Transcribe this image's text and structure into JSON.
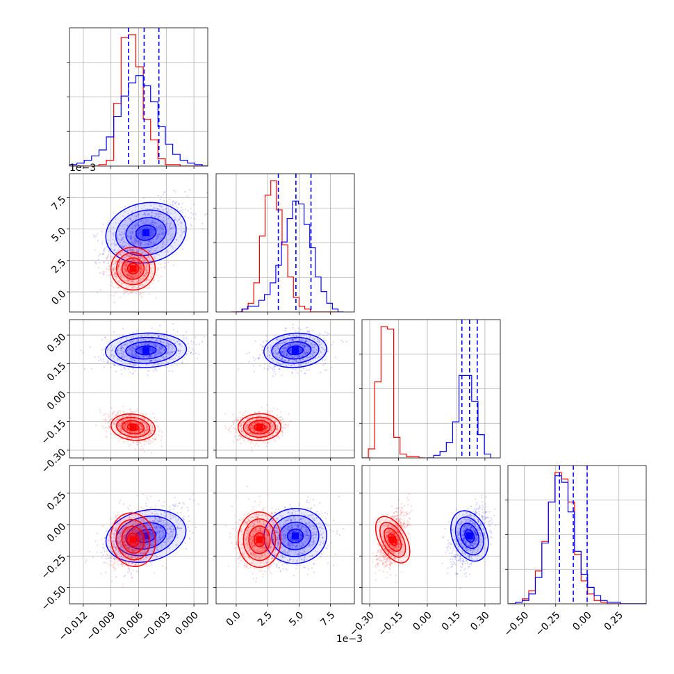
{
  "chart_data": {
    "type": "corner",
    "colors": {
      "series_a": "#0000ff",
      "series_b": "#ff0000",
      "grid": "#b0b0b0",
      "quantile_line": "#0000ff"
    },
    "grid": true,
    "params": [
      {
        "range": [
          -0.0135,
          0.0015
        ],
        "ticks": [
          -0.012,
          -0.009,
          -0.006,
          -0.003,
          0.0
        ],
        "tick_labels": [
          "−0.012",
          "−0.009",
          "−0.006",
          "−0.003",
          "0.000"
        ],
        "offset_label": ""
      },
      {
        "range": [
          -1.6,
          9.4
        ],
        "ticks": [
          0.0,
          2.5,
          5.0,
          7.5
        ],
        "tick_labels": [
          "0.0",
          "2.5",
          "5.0",
          "7.5"
        ],
        "offset_label": "1e−3"
      },
      {
        "range": [
          -0.34,
          0.38
        ],
        "ticks": [
          -0.3,
          -0.15,
          0.0,
          0.15,
          0.3
        ],
        "tick_labels": [
          "−0.30",
          "−0.15",
          "0.00",
          "0.15",
          "0.30"
        ],
        "offset_label": ""
      },
      {
        "range": [
          -0.63,
          0.47
        ],
        "ticks": [
          -0.5,
          -0.25,
          0.0,
          0.25
        ],
        "tick_labels": [
          "−0.50",
          "−0.25",
          "0.00",
          "0.25"
        ],
        "offset_label": ""
      }
    ],
    "quantiles": [
      [
        -0.0071,
        -0.0054,
        -0.0038
      ],
      [
        3.35,
        4.75,
        5.95
      ],
      [
        0.18,
        0.22,
        0.26
      ],
      [
        -0.22,
        -0.11,
        0.0
      ]
    ],
    "histograms": {
      "series_a": [
        {
          "edges_from": -0.0135,
          "bin_width": 0.0008,
          "counts": [
            1,
            2,
            4,
            7,
            11,
            20,
            34,
            48,
            57,
            62,
            55,
            44,
            27,
            15,
            8,
            4,
            2,
            1,
            0
          ]
        },
        {
          "edges_from": 0.0,
          "bin_width": 0.45,
          "counts": [
            0,
            1,
            2,
            2,
            4,
            6,
            10,
            16,
            24,
            32,
            38,
            37,
            30,
            22,
            12,
            7,
            3,
            1,
            0
          ]
        },
        {
          "edges_from": 0.0,
          "bin_width": 0.033,
          "counts": [
            0,
            2,
            5,
            12,
            28,
            64,
            64,
            44,
            18,
            3
          ]
        },
        {
          "edges_from": -0.62,
          "bin_width": 0.052,
          "counts": [
            0,
            1,
            2,
            6,
            16,
            37,
            62,
            78,
            74,
            56,
            32,
            18,
            10,
            5,
            2,
            1,
            1,
            0,
            0,
            0,
            0
          ]
        }
      ],
      "series_b": [
        {
          "edges_from": -0.0135,
          "bin_width": 0.0008,
          "counts": [
            0,
            0,
            0,
            0,
            1,
            4,
            43,
            88,
            90,
            68,
            32,
            18,
            5,
            1,
            1,
            0,
            0,
            0,
            0
          ]
        },
        {
          "edges_from": -0.4,
          "bin_width": 0.45,
          "counts": [
            0,
            0,
            1,
            3,
            10,
            26,
            40,
            45,
            35,
            23,
            12,
            5,
            2,
            1,
            0,
            0,
            0,
            0,
            0
          ]
        },
        {
          "edges_from": -0.34,
          "bin_width": 0.033,
          "counts": [
            0,
            7,
            59,
            102,
            100,
            16,
            3,
            1,
            1,
            0
          ]
        },
        {
          "edges_from": -0.62,
          "bin_width": 0.052,
          "counts": [
            0,
            1,
            3,
            8,
            20,
            38,
            62,
            80,
            76,
            62,
            30,
            14,
            6,
            2,
            1,
            0,
            0,
            0,
            0,
            0,
            0
          ]
        }
      ]
    },
    "distributions": {
      "series_a": {
        "means": [
          -0.0052,
          4.7,
          0.22,
          -0.09
        ],
        "sds": [
          0.0022,
          1.25,
          0.045,
          0.11
        ],
        "corr": [
          [
            1.0,
            0.45,
            0.15,
            0.55
          ],
          [
            0.45,
            1.0,
            0.2,
            0.15
          ],
          [
            0.15,
            0.2,
            1.0,
            0.45
          ],
          [
            0.55,
            0.15,
            0.45,
            1.0
          ]
        ]
      },
      "series_b": {
        "means": [
          -0.0066,
          1.85,
          -0.18,
          -0.12
        ],
        "sds": [
          0.0012,
          0.85,
          0.035,
          0.11
        ],
        "corr": [
          [
            1.0,
            0.05,
            -0.35,
            0.3
          ],
          [
            0.05,
            1.0,
            0.05,
            0.0
          ],
          [
            -0.35,
            0.05,
            1.0,
            0.55
          ],
          [
            0.3,
            0.0,
            0.55,
            1.0
          ]
        ]
      }
    }
  }
}
